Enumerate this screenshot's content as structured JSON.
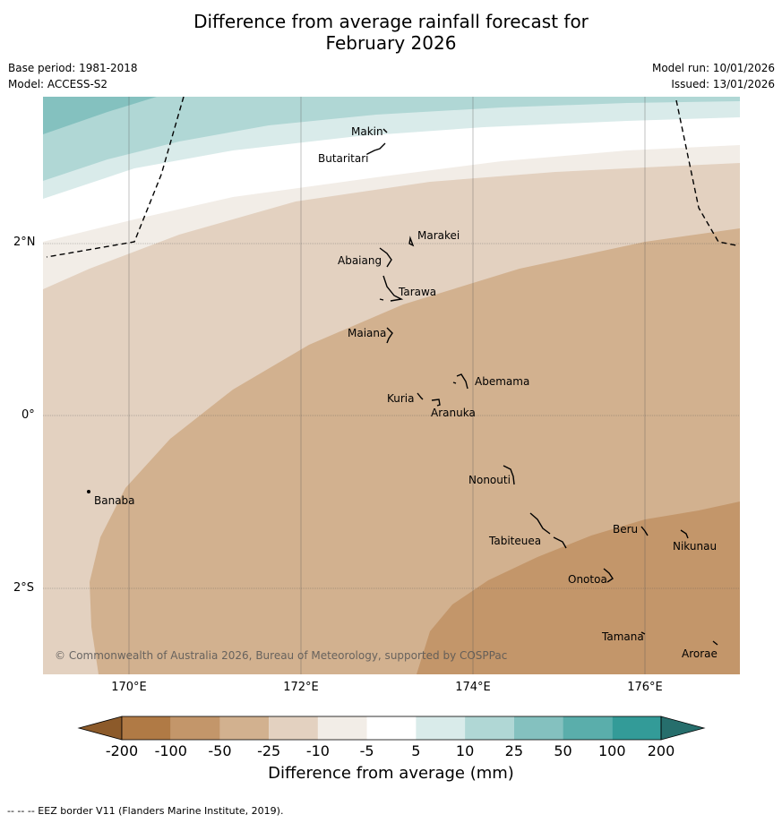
{
  "title_line1": "Difference from average rainfall forecast for",
  "title_line2": "February 2026",
  "base_period": "Base period: 1981-2018",
  "model": "Model: ACCESS-S2",
  "model_run": "Model run: 10/01/2026",
  "issued": "Issued: 13/01/2026",
  "copyright": "© Commonwealth of Australia 2026, Bureau of Meteorology, supported by COSPPac",
  "lat_labels": [
    "2°N",
    "0°",
    "2°S"
  ],
  "lon_labels": [
    "170°E",
    "172°E",
    "174°E",
    "176°E"
  ],
  "islands": [
    "Makin",
    "Butaritari",
    "Marakei",
    "Abaiang",
    "Tarawa",
    "Maiana",
    "Abemama",
    "Kuria",
    "Aranuka",
    "Nonouti",
    "Banaba",
    "Beru",
    "Nikunau",
    "Tabiteuea",
    "Onotoa",
    "Tamana",
    "Arorae"
  ],
  "colorbar": {
    "ticks": [
      "-200",
      "-100",
      "-50",
      "-25",
      "-10",
      "-5",
      "5",
      "10",
      "25",
      "50",
      "100",
      "200"
    ],
    "colors": [
      "#8c5a2a",
      "#b07a45",
      "#c3966a",
      "#d2b18f",
      "#e3d1c0",
      "#f2ede7",
      "#ffffff",
      "#d9ebea",
      "#b0d7d5",
      "#84c1bf",
      "#5aaeab",
      "#339b98",
      "#266e6c"
    ],
    "label": "Difference from average (mm)"
  },
  "footnote": "--  --  -- EEZ border V11 (Flanders Marine Institute, 2019)."
}
